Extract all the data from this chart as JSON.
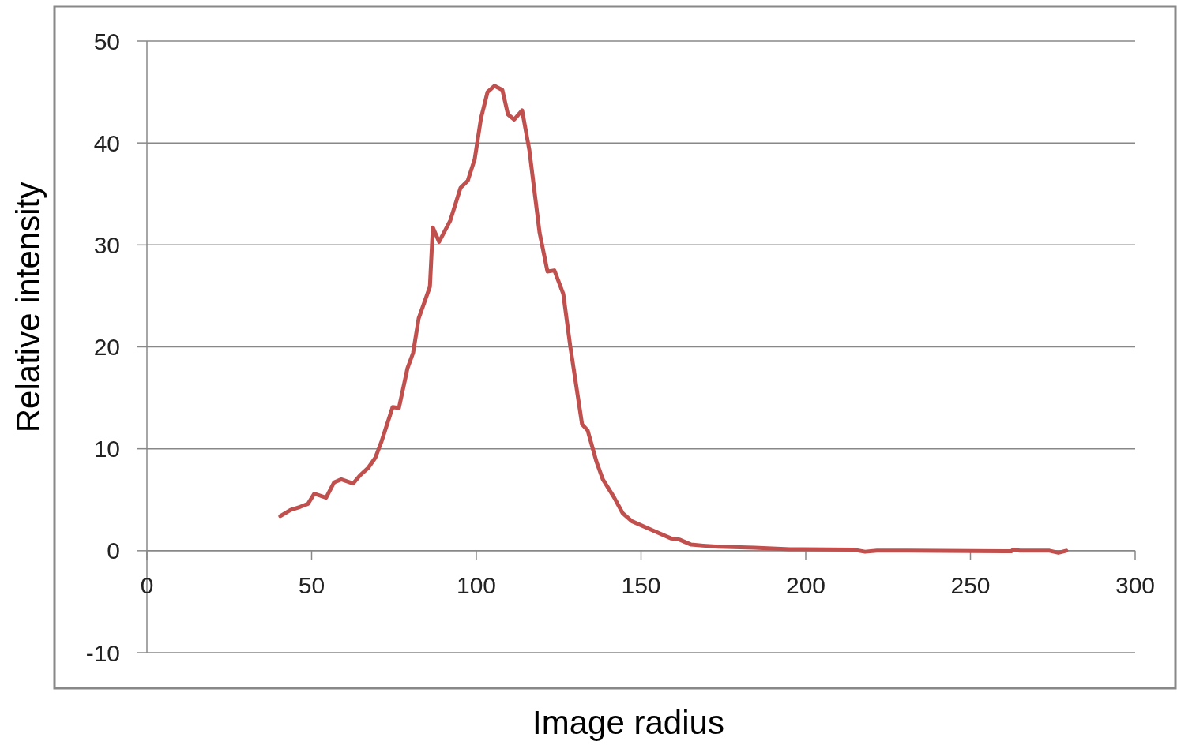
{
  "chart_data": {
    "type": "line",
    "xlabel": "Image radius",
    "ylabel": "Relative intensity",
    "xlim": [
      0,
      300
    ],
    "xticks": [
      0,
      50,
      100,
      150,
      200,
      250,
      300
    ],
    "ylim": [
      -10,
      50
    ],
    "yticks": [
      -10,
      0,
      10,
      20,
      30,
      40,
      50
    ],
    "grid": "y",
    "marker": "none",
    "line_style": "solid",
    "series": [
      {
        "color": "#c0504d",
        "x": [
          40.5,
          43.6,
          46.5,
          48.9,
          50.8,
          54.4,
          56.8,
          59.0,
          62.6,
          64.7,
          67.1,
          69.3,
          71.2,
          74.6,
          76.5,
          79.1,
          80.8,
          82.5,
          85.9,
          86.8,
          88.7,
          92.1,
          95.2,
          97.4,
          99.5,
          101.4,
          103.4,
          105.5,
          107.9,
          109.6,
          111.5,
          113.9,
          116.1,
          119.2,
          121.6,
          123.7,
          126.4,
          128.5,
          132.1,
          133.8,
          136.5,
          138.4,
          141.7,
          144.4,
          147.2,
          153.5,
          159.2,
          161.6,
          165.2,
          168.8,
          173.6,
          184.4,
          195.2,
          214.4,
          218.0,
          221.6,
          226.4,
          231.0,
          262.4,
          263.0,
          265.0,
          274.0,
          276.7,
          279.1
        ],
        "values": [
          3.4,
          4.0,
          4.3,
          4.6,
          5.6,
          5.2,
          6.7,
          7.0,
          6.6,
          7.4,
          8.1,
          9.1,
          10.7,
          14.1,
          14.0,
          17.9,
          19.4,
          22.8,
          25.9,
          31.7,
          30.3,
          32.4,
          35.6,
          36.3,
          38.4,
          42.4,
          45.0,
          45.6,
          45.2,
          42.8,
          42.3,
          43.2,
          39.3,
          31.2,
          27.4,
          27.5,
          25.2,
          20.1,
          12.4,
          11.8,
          8.7,
          7.0,
          5.3,
          3.7,
          2.9,
          2.0,
          1.2,
          1.1,
          0.6,
          0.5,
          0.4,
          0.3,
          0.15,
          0.1,
          -0.1,
          0,
          0,
          0,
          -0.05,
          0.1,
          0,
          0,
          -0.2,
          0
        ]
      }
    ]
  }
}
